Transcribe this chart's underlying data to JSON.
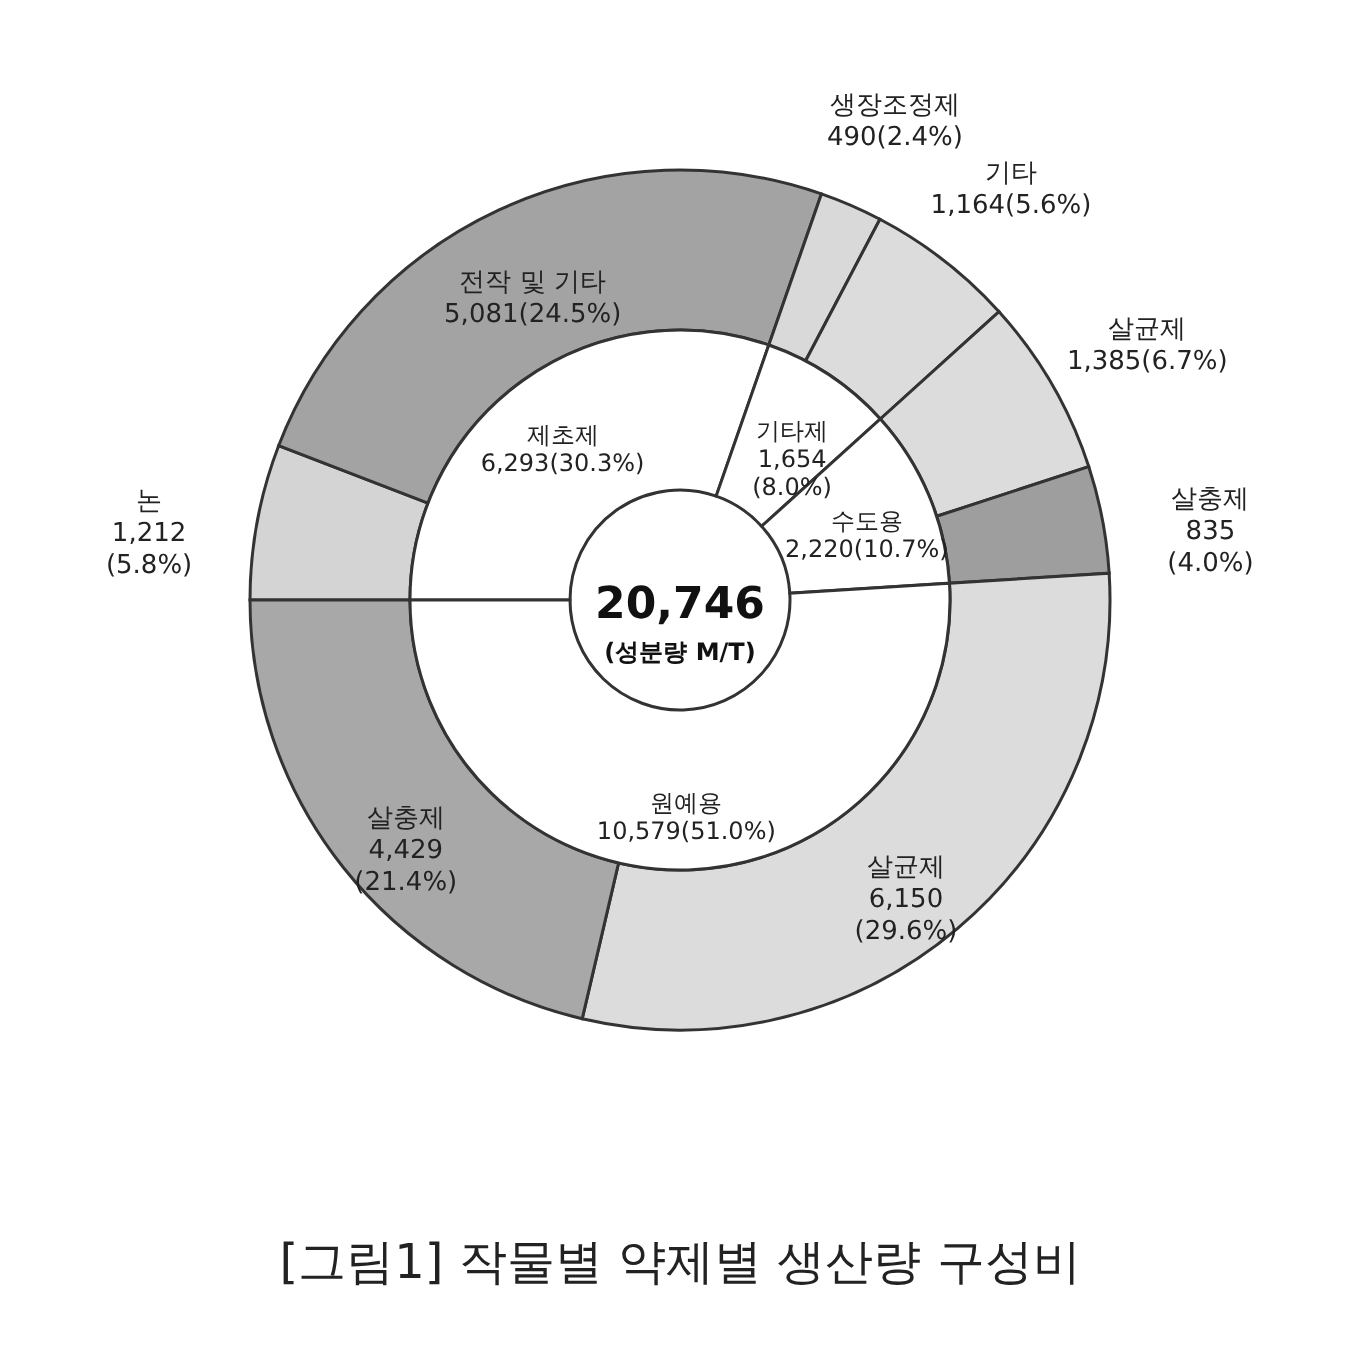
{
  "chart_data": [
    {
      "type": "donut",
      "title": "[그림1] 작물별 약제별 생산량 구성비",
      "categories": [
        "제초제",
        "기타제",
        "수도용",
        "원예용"
      ],
      "values": [
        6293,
        1654,
        2220,
        10579
      ],
      "colors": [
        "#ffffff",
        "#ffffff",
        "#ffffff",
        "#ffffff"
      ],
      "value_labels": [
        "6,293(30.3%)",
        "1,654 (8.0%)",
        "2,220(10.7%)",
        "10,579(51.0%)"
      ],
      "annotations": [
        "20,746",
        "(성분량 M/T)"
      ]
    },
    {
      "type": "donut",
      "categories": [
        "논",
        "전작 및 기타",
        "생장조정제",
        "기타",
        "살균제",
        "살충제",
        "살균제",
        "살충제"
      ],
      "values": [
        1212,
        5081,
        490,
        1164,
        1385,
        835,
        6150,
        4429
      ],
      "colors": [
        "#d4d4d4",
        "#a3a3a3",
        "#d9d9d9",
        "#dcdcdc",
        "#dcdcdc",
        "#9e9e9e",
        "#dcdcdc",
        "#a8a8a8"
      ],
      "value_labels": [
        "1,212 (5.8%)",
        "5,081(24.5%)",
        "490(2.4%)",
        "1,164(5.6%)",
        "1,385(6.7%)",
        "835 (4.0%)",
        "6,150 (29.6%)",
        "4,429 (21.4%)"
      ]
    }
  ]
}
